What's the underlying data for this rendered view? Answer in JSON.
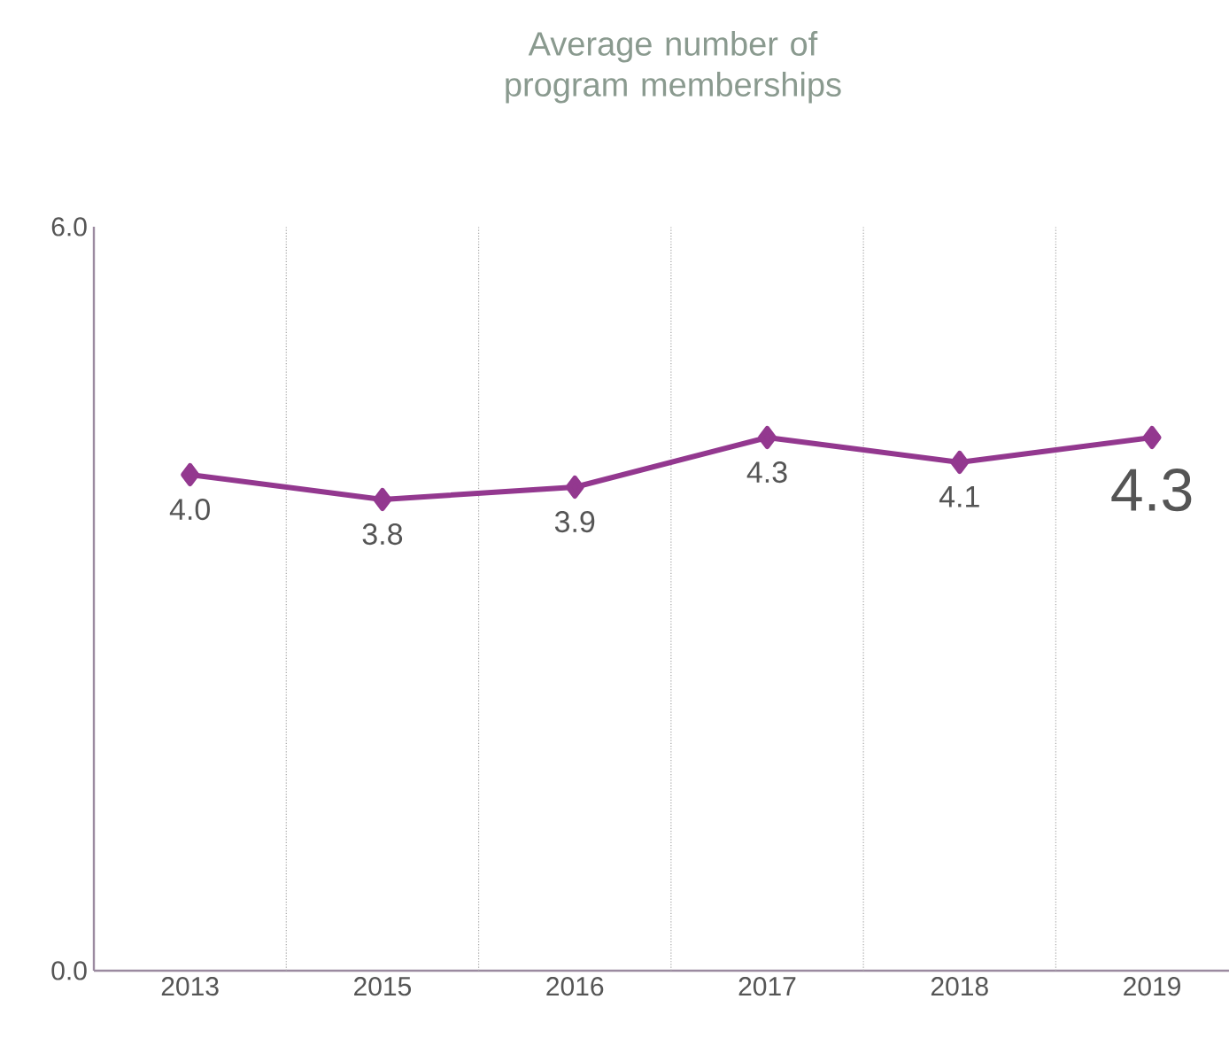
{
  "chart_data": {
    "type": "line",
    "title": "Average number of program memberships",
    "categories": [
      "2013",
      "2015",
      "2016",
      "2017",
      "2018",
      "2019"
    ],
    "series": [
      {
        "color": "#93388f",
        "values": [
          4.0,
          3.8,
          3.9,
          4.3,
          4.1,
          4.3
        ],
        "value_labels": [
          "4.0",
          "3.8",
          "3.9",
          "4.3",
          "4.1",
          "4.3"
        ]
      }
    ],
    "ylim": [
      0,
      6
    ],
    "yticks": [
      {
        "value": 0,
        "label": "0.0"
      },
      {
        "value": 6,
        "label": "6.0"
      }
    ],
    "grid": "x",
    "marker": "diamond",
    "line_style": "solid"
  }
}
